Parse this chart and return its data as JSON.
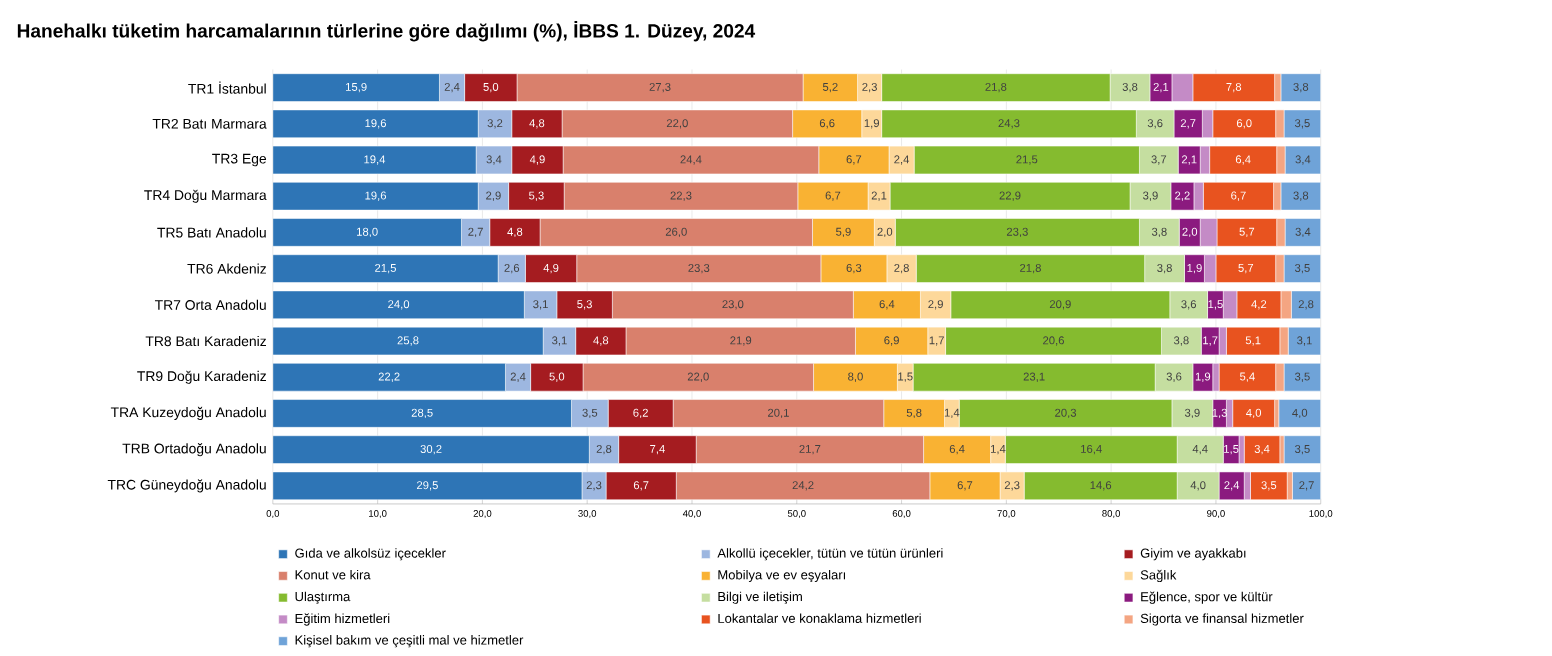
{
  "chart_data": {
    "type": "bar",
    "orientation": "horizontal",
    "stacked": true,
    "title": "Hanehalkı tüketim harcamalarının türlerine göre dağılımı (%), İBBS 1. Düzey, 2024",
    "categories": [
      "TR1 İstanbul",
      "TR2 Batı Marmara",
      "TR3 Ege",
      "TR4 Doğu Marmara",
      "TR5 Batı Anadolu",
      "TR6 Akdeniz",
      "TR7 Orta Anadolu",
      "TR8 Batı Karadeniz",
      "TR9 Doğu Karadeniz",
      "TRA Kuzeydoğu Anadolu",
      "TRB Ortadoğu Anadolu",
      "TRC Güneydoğu Anadolu"
    ],
    "series": [
      {
        "name": "Gıda ve alkolsüz içecekler",
        "color": "#2e75b6",
        "values": [
          15.9,
          19.6,
          19.4,
          19.6,
          18.0,
          21.5,
          24.0,
          25.8,
          22.2,
          28.5,
          30.2,
          29.5
        ],
        "value_labels": [
          "15,9",
          "19,6",
          "19,4",
          "19,6",
          "18,0",
          "21,5",
          "24,0",
          "25,8",
          "22,2",
          "28,5",
          "30,2",
          "29,5"
        ]
      },
      {
        "name": "Alkollü içecekler, tütün ve tütün ürünleri",
        "color": "#9db7e0",
        "values": [
          2.4,
          3.2,
          3.4,
          2.9,
          2.7,
          2.6,
          3.1,
          3.1,
          2.4,
          3.5,
          2.8,
          2.3
        ],
        "value_labels": [
          "2,4",
          "3,2",
          "3,4",
          "2,9",
          "2,7",
          "2,6",
          "3,1",
          "3,1",
          "2,4",
          "3,5",
          "2,8",
          "2,3"
        ]
      },
      {
        "name": "Giyim ve ayakkabı",
        "color": "#a51c20",
        "values": [
          5.0,
          4.8,
          4.9,
          5.3,
          4.8,
          4.9,
          5.3,
          4.8,
          5.0,
          6.2,
          7.4,
          6.7
        ],
        "value_labels": [
          "5,0",
          "4,8",
          "4,9",
          "5,3",
          "4,8",
          "4,9",
          "5,3",
          "4,8",
          "5,0",
          "6,2",
          "7,4",
          "6,7"
        ]
      },
      {
        "name": "Konut ve kira",
        "color": "#d9806c",
        "values": [
          27.3,
          22.0,
          24.4,
          22.3,
          26.0,
          23.3,
          23.0,
          21.9,
          22.0,
          20.1,
          21.7,
          24.2
        ],
        "value_labels": [
          "27,3",
          "22,0",
          "24,4",
          "22,3",
          "26,0",
          "23,3",
          "23,0",
          "21,9",
          "22,0",
          "20,1",
          "21,7",
          "24,2"
        ]
      },
      {
        "name": "Mobilya ve ev eşyaları",
        "color": "#f9b233",
        "values": [
          5.2,
          6.6,
          6.7,
          6.7,
          5.9,
          6.3,
          6.4,
          6.9,
          8.0,
          5.8,
          6.4,
          6.7
        ],
        "value_labels": [
          "5,2",
          "6,6",
          "6,7",
          "6,7",
          "5,9",
          "6,3",
          "6,4",
          "6,9",
          "8,0",
          "5,8",
          "6,4",
          "6,7"
        ]
      },
      {
        "name": "Sağlık",
        "color": "#fdd89a",
        "values": [
          2.3,
          1.9,
          2.4,
          2.1,
          2.0,
          2.8,
          2.9,
          1.7,
          1.5,
          1.4,
          1.4,
          2.3
        ],
        "value_labels": [
          "2,3",
          "1,9",
          "2,4",
          "2,1",
          "2,0",
          "2,8",
          "2,9",
          "1,7",
          "1,5",
          "1,4",
          "1,4",
          "2,3"
        ]
      },
      {
        "name": "Ulaştırma",
        "color": "#85bb2f",
        "values": [
          21.8,
          24.3,
          21.5,
          22.9,
          23.3,
          21.8,
          20.9,
          20.6,
          23.1,
          20.3,
          16.4,
          14.6
        ],
        "value_labels": [
          "21,8",
          "24,3",
          "21,5",
          "22,9",
          "23,3",
          "21,8",
          "20,9",
          "20,6",
          "23,1",
          "20,3",
          "16,4",
          "14,6"
        ]
      },
      {
        "name": "Bilgi ve iletişim",
        "color": "#c5dea0",
        "values": [
          3.8,
          3.6,
          3.7,
          3.9,
          3.8,
          3.8,
          3.6,
          3.8,
          3.6,
          3.9,
          4.4,
          4.0
        ],
        "value_labels": [
          "3,8",
          "3,6",
          "3,7",
          "3,9",
          "3,8",
          "3,8",
          "3,6",
          "3,8",
          "3,6",
          "3,9",
          "4,4",
          "4,0"
        ]
      },
      {
        "name": "Eğlence, spor ve kültür",
        "color": "#8b1a7f",
        "values": [
          2.1,
          2.7,
          2.1,
          2.2,
          2.0,
          1.9,
          1.5,
          1.7,
          1.9,
          1.3,
          1.5,
          2.4
        ],
        "value_labels": [
          "2,1",
          "2,7",
          "2,1",
          "2,2",
          "2,0",
          "1,9",
          "1,5",
          "1,7",
          "1,9",
          "1,3",
          "1,5",
          "2,4"
        ]
      },
      {
        "name": "Eğitim hizmetleri",
        "color": "#c48bc6",
        "values": [
          2.0,
          1.0,
          0.9,
          0.9,
          1.6,
          1.1,
          1.3,
          0.7,
          0.6,
          0.6,
          0.5,
          0.6
        ]
      },
      {
        "name": "Lokantalar ve konaklama hizmetleri",
        "color": "#e8531f",
        "values": [
          7.8,
          6.0,
          6.4,
          6.7,
          5.7,
          5.7,
          4.2,
          5.1,
          5.4,
          4.0,
          3.4,
          3.5
        ],
        "value_labels": [
          "7,8",
          "6,0",
          "6,4",
          "6,7",
          "5,7",
          "5,7",
          "4,2",
          "5,1",
          "5,4",
          "4,0",
          "3,4",
          "3,5"
        ]
      },
      {
        "name": "Sigorta ve finansal hizmetler",
        "color": "#f4a582",
        "values": [
          0.6,
          0.8,
          0.8,
          0.7,
          0.8,
          0.8,
          1.0,
          0.8,
          0.8,
          0.4,
          0.4,
          0.5
        ]
      },
      {
        "name": "Kişisel bakım ve çeşitli mal ve hizmetler",
        "color": "#6fa3d8",
        "values": [
          3.8,
          3.5,
          3.4,
          3.8,
          3.4,
          3.5,
          2.8,
          3.1,
          3.5,
          4.0,
          3.5,
          2.7
        ],
        "value_labels": [
          "3,8",
          "3,5",
          "3,4",
          "3,8",
          "3,4",
          "3,5",
          "2,8",
          "3,1",
          "3,5",
          "4,0",
          "3,5",
          "2,7"
        ]
      }
    ],
    "xlim": [
      0,
      100
    ],
    "xticks": [
      {
        "value": 0,
        "label": "0,0"
      },
      {
        "value": 10,
        "label": "10,0"
      },
      {
        "value": 20,
        "label": "20,0"
      },
      {
        "value": 30,
        "label": "30,0"
      },
      {
        "value": 40,
        "label": "40,0"
      },
      {
        "value": 50,
        "label": "50,0"
      },
      {
        "value": 60,
        "label": "60,0"
      },
      {
        "value": 70,
        "label": "70,0"
      },
      {
        "value": 80,
        "label": "80,0"
      },
      {
        "value": 90,
        "label": "90,0"
      },
      {
        "value": 100,
        "label": "100,0"
      }
    ],
    "grid": "x",
    "legend": "bottom"
  }
}
